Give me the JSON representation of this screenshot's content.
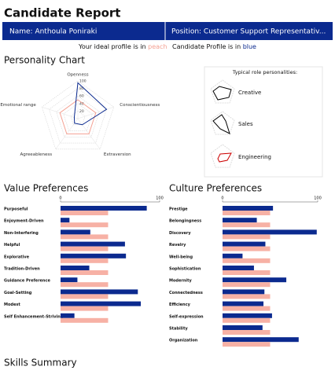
{
  "header": {
    "title": "Candidate Report",
    "name": "Name: Anthoula Poniraki",
    "position": "Position: Customer Support Representativ..."
  },
  "legend": {
    "ideal_text": "Your ideal profile is in",
    "ideal_word": "peach",
    "candidate_text": "Candidate Profile is in",
    "candidate_word": "blue"
  },
  "roles": {
    "title": "Typical role personalities:",
    "items": [
      "Creative",
      "Sales",
      "Engineering"
    ]
  },
  "skills_title": "Skills Summary",
  "chart_data": [
    {
      "type": "radar",
      "title": "Personality Chart",
      "categories": [
        "Openness",
        "Conscientiousness",
        "Extraversion",
        "Agreeableness",
        "Emotional range"
      ],
      "rlim": [
        0,
        100
      ],
      "rticks": [
        20,
        40,
        60,
        80,
        100
      ],
      "series": [
        {
          "color": "#f4a193",
          "values": [
            50,
            50,
            50,
            50,
            50
          ]
        },
        {
          "color": "#0b2a8f",
          "values": [
            95,
            80,
            20,
            15,
            10
          ]
        }
      ]
    },
    {
      "type": "bar",
      "title": "Value Preferences",
      "categories": [
        "Purposeful",
        "Enjoyment-Driven",
        "Non-Interfering",
        "Helpful",
        "Explorative",
        "Tradition-Driven",
        "Guidance Preference",
        "Goal-Setting",
        "Modest",
        "Self Enhancement-Striving"
      ],
      "xlim": [
        0,
        100
      ],
      "xticks": [
        0,
        100
      ],
      "series": [
        {
          "color": "#0b2a8f",
          "values": [
            87,
            9,
            30,
            65,
            66,
            29,
            17,
            78,
            81,
            14
          ]
        },
        {
          "color": "#f7b1a5",
          "values": [
            48,
            48,
            48,
            48,
            48,
            48,
            48,
            48,
            48,
            48
          ]
        }
      ]
    },
    {
      "type": "bar",
      "title": "Culture Preferences",
      "categories": [
        "Prestige",
        "Belongingness",
        "Discovery",
        "Revelry",
        "Well-being",
        "Sophistication",
        "Modernity",
        "Connectedness",
        "Efficiency",
        "Self-expression",
        "Stability",
        "Organization"
      ],
      "xlim": [
        0,
        100
      ],
      "xticks": [
        0,
        100
      ],
      "series": [
        {
          "color": "#0b2a8f",
          "values": [
            53,
            36,
            99,
            45,
            21,
            33,
            67,
            44,
            43,
            52,
            42,
            80
          ]
        },
        {
          "color": "#f7b1a5",
          "values": [
            50,
            50,
            50,
            50,
            50,
            50,
            50,
            50,
            50,
            50,
            50,
            50
          ]
        }
      ]
    }
  ]
}
